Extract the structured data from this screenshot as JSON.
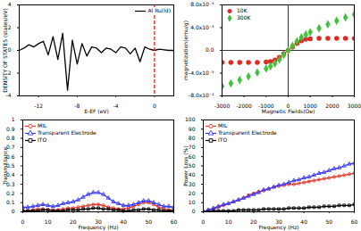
{
  "chart_data": [
    {
      "type": "line",
      "x_label": "E-EF (eV)",
      "y_label": "DENSITY OF STATES (states/eV)",
      "x": [
        -14,
        -13.5,
        -13,
        -12.5,
        -12,
        -11.5,
        -11,
        -10.5,
        -10,
        -9.5,
        -9,
        -8.5,
        -8,
        -7.5,
        -7,
        -6.5,
        -6,
        -5.5,
        -5,
        -4.5,
        -4,
        -3.5,
        -3,
        -2.5,
        -2,
        -1.5,
        -1,
        -0.5,
        0,
        0.5,
        1,
        1.5,
        2
      ],
      "series": [
        {
          "name": "Al Ru(ld)",
          "color": "#000000",
          "values": [
            0,
            0.2,
            0.5,
            0.3,
            0.6,
            0.8,
            -0.4,
            1.2,
            -0.8,
            1.5,
            -3.5,
            0.9,
            -1.2,
            0.6,
            -0.5,
            0.3,
            0.2,
            -0.2,
            0.2,
            0.1,
            -0.2,
            0.3,
            0.2,
            -0.3,
            0.2,
            -1.0,
            0.3,
            0.1,
            0,
            0.1,
            0.05,
            0,
            0
          ]
        }
      ],
      "vline": {
        "x": 0,
        "color": "#e8231b",
        "line_style": "dashed"
      },
      "xlim": [
        -14,
        2
      ],
      "xticks": [
        -12,
        -8,
        -4,
        0
      ],
      "ylim": [
        -4,
        4
      ],
      "yticks": [
        -4,
        -2,
        0,
        2,
        4
      ],
      "legend": "top-right",
      "grid": false
    },
    {
      "type": "scatter",
      "x_label": "Magnetic Fields(Oe)",
      "y_label": "magnetization(emu/g)",
      "x": [
        -3000,
        -2600,
        -2200,
        -1800,
        -1400,
        -1000,
        -800,
        -600,
        -400,
        -200,
        0,
        200,
        400,
        600,
        800,
        1000,
        1400,
        1800,
        2200,
        2600,
        3000
      ],
      "series": [
        {
          "name": "10K",
          "color": "#dd2a22",
          "marker": "circle",
          "values": [
            -0.0021,
            -0.0021,
            -0.0021,
            -0.0021,
            -0.0021,
            -0.00205,
            -0.00195,
            -0.0017,
            -0.0012,
            -0.0006,
            0,
            0.0006,
            0.0012,
            0.0017,
            0.00195,
            0.00205,
            0.0021,
            0.0021,
            0.0021,
            0.0021,
            0.0021
          ]
        },
        {
          "name": "300K",
          "color": "#44c23c",
          "marker": "diamond",
          "values": [
            -0.0063,
            -0.0058,
            -0.0052,
            -0.0046,
            -0.0039,
            -0.0032,
            -0.0028,
            -0.0023,
            -0.0016,
            -0.0008,
            0,
            0.0008,
            0.0016,
            0.0023,
            0.0028,
            0.0032,
            0.0039,
            0.0046,
            0.0052,
            0.0058,
            0.0063
          ]
        }
      ],
      "xlim": [
        -3000,
        3000
      ],
      "xticks": [
        -3000,
        -2000,
        -1000,
        0,
        1000,
        2000,
        3000
      ],
      "ylim": [
        -0.008,
        0.008
      ],
      "yticks": [
        {
          "value": -0.008,
          "label": "-8.0x10⁻³"
        },
        {
          "value": -0.004,
          "label": "-4.0x10⁻³"
        },
        {
          "value": 0,
          "label": "0.0"
        },
        {
          "value": 0.004,
          "label": "4.0x10⁻³"
        },
        {
          "value": 0.008,
          "label": "8.0x10⁻³"
        }
      ],
      "legend": "top-left",
      "grid": false
    },
    {
      "type": "line",
      "x_label": "Frequency (Hz)",
      "y_label": "Transmittance",
      "x": [
        0,
        2,
        4,
        6,
        8,
        10,
        12,
        14,
        16,
        18,
        20,
        22,
        24,
        26,
        28,
        30,
        32,
        34,
        36,
        38,
        40,
        42,
        44,
        46,
        48,
        50,
        52,
        54,
        56,
        58,
        60
      ],
      "series": [
        {
          "name": "MIL",
          "color": "#e2392a",
          "marker": "circle",
          "values": [
            0.01,
            0.01,
            0.02,
            0.03,
            0.03,
            0.02,
            0.02,
            0.02,
            0.03,
            0.04,
            0.04,
            0.05,
            0.06,
            0.07,
            0.08,
            0.08,
            0.07,
            0.05,
            0.04,
            0.03,
            0.03,
            0.04,
            0.06,
            0.08,
            0.1,
            0.1,
            0.08,
            0.05,
            0.03,
            0.02,
            0.02
          ]
        },
        {
          "name": "Transparent Electrode",
          "color": "#3b3bf5",
          "marker": "triangle",
          "values": [
            0.05,
            0.05,
            0.06,
            0.07,
            0.08,
            0.07,
            0.06,
            0.07,
            0.09,
            0.1,
            0.11,
            0.13,
            0.16,
            0.19,
            0.21,
            0.21,
            0.19,
            0.15,
            0.11,
            0.09,
            0.07,
            0.07,
            0.08,
            0.1,
            0.12,
            0.12,
            0.1,
            0.08,
            0.06,
            0.06,
            0.05
          ]
        },
        {
          "name": "ITO",
          "color": "#000000",
          "marker": "square",
          "values": [
            0.01,
            0.01,
            0.01,
            0.01,
            0.02,
            0.02,
            0.01,
            0.01,
            0.01,
            0.02,
            0.02,
            0.02,
            0.03,
            0.03,
            0.04,
            0.04,
            0.03,
            0.03,
            0.02,
            0.02,
            0.01,
            0.01,
            0.02,
            0.02,
            0.03,
            0.03,
            0.02,
            0.02,
            0.01,
            0.01,
            0.01
          ]
        }
      ],
      "xlim": [
        0,
        60
      ],
      "xticks": [
        0,
        10,
        20,
        30,
        40,
        50,
        60
      ],
      "ylim": [
        0,
        1
      ],
      "yticks": [
        0,
        0.1,
        0.2,
        0.3,
        0.4,
        0.5,
        0.6,
        0.7,
        0.8,
        0.9,
        1
      ],
      "legend": "top-left",
      "grid": false
    },
    {
      "type": "line",
      "x_label": "Frequency (Hz)",
      "y_label": "Power Loss (%)",
      "x": [
        0,
        2,
        4,
        6,
        8,
        10,
        12,
        14,
        16,
        18,
        20,
        22,
        24,
        26,
        28,
        30,
        32,
        34,
        36,
        38,
        40,
        42,
        44,
        46,
        48,
        50,
        52,
        54,
        56,
        58,
        60
      ],
      "series": [
        {
          "name": "MIL",
          "color": "#e2392a",
          "marker": "circle",
          "values": [
            0,
            2,
            3,
            5,
            7,
            9,
            11,
            13,
            15,
            18,
            20,
            22,
            23,
            25,
            27,
            28,
            29,
            30,
            30,
            31,
            32,
            33,
            34,
            35,
            36,
            37,
            38,
            39,
            40,
            41,
            42
          ]
        },
        {
          "name": "Transparent Electrode",
          "color": "#3b3bf5",
          "marker": "triangle",
          "values": [
            0,
            2,
            4,
            6,
            8,
            9,
            11,
            13,
            15,
            17,
            19,
            21,
            24,
            25,
            27,
            29,
            30,
            32,
            34,
            35,
            37,
            38,
            40,
            42,
            43,
            45,
            47,
            48,
            50,
            52,
            53
          ]
        },
        {
          "name": "ITO",
          "color": "#000000",
          "marker": "square",
          "values": [
            0,
            0,
            1,
            1,
            1,
            1,
            1,
            2,
            2,
            2,
            2,
            2,
            3,
            3,
            3,
            3,
            3,
            4,
            4,
            4,
            4,
            5,
            5,
            5,
            6,
            6,
            6,
            7,
            7,
            7,
            8
          ]
        }
      ],
      "xlim": [
        0,
        60
      ],
      "xticks": [
        0,
        10,
        20,
        30,
        40,
        50,
        60
      ],
      "ylim": [
        0,
        100
      ],
      "yticks": [
        0,
        10,
        20,
        30,
        40,
        50,
        60,
        70,
        80,
        90,
        100
      ],
      "legend": "top-left",
      "grid": false
    }
  ]
}
